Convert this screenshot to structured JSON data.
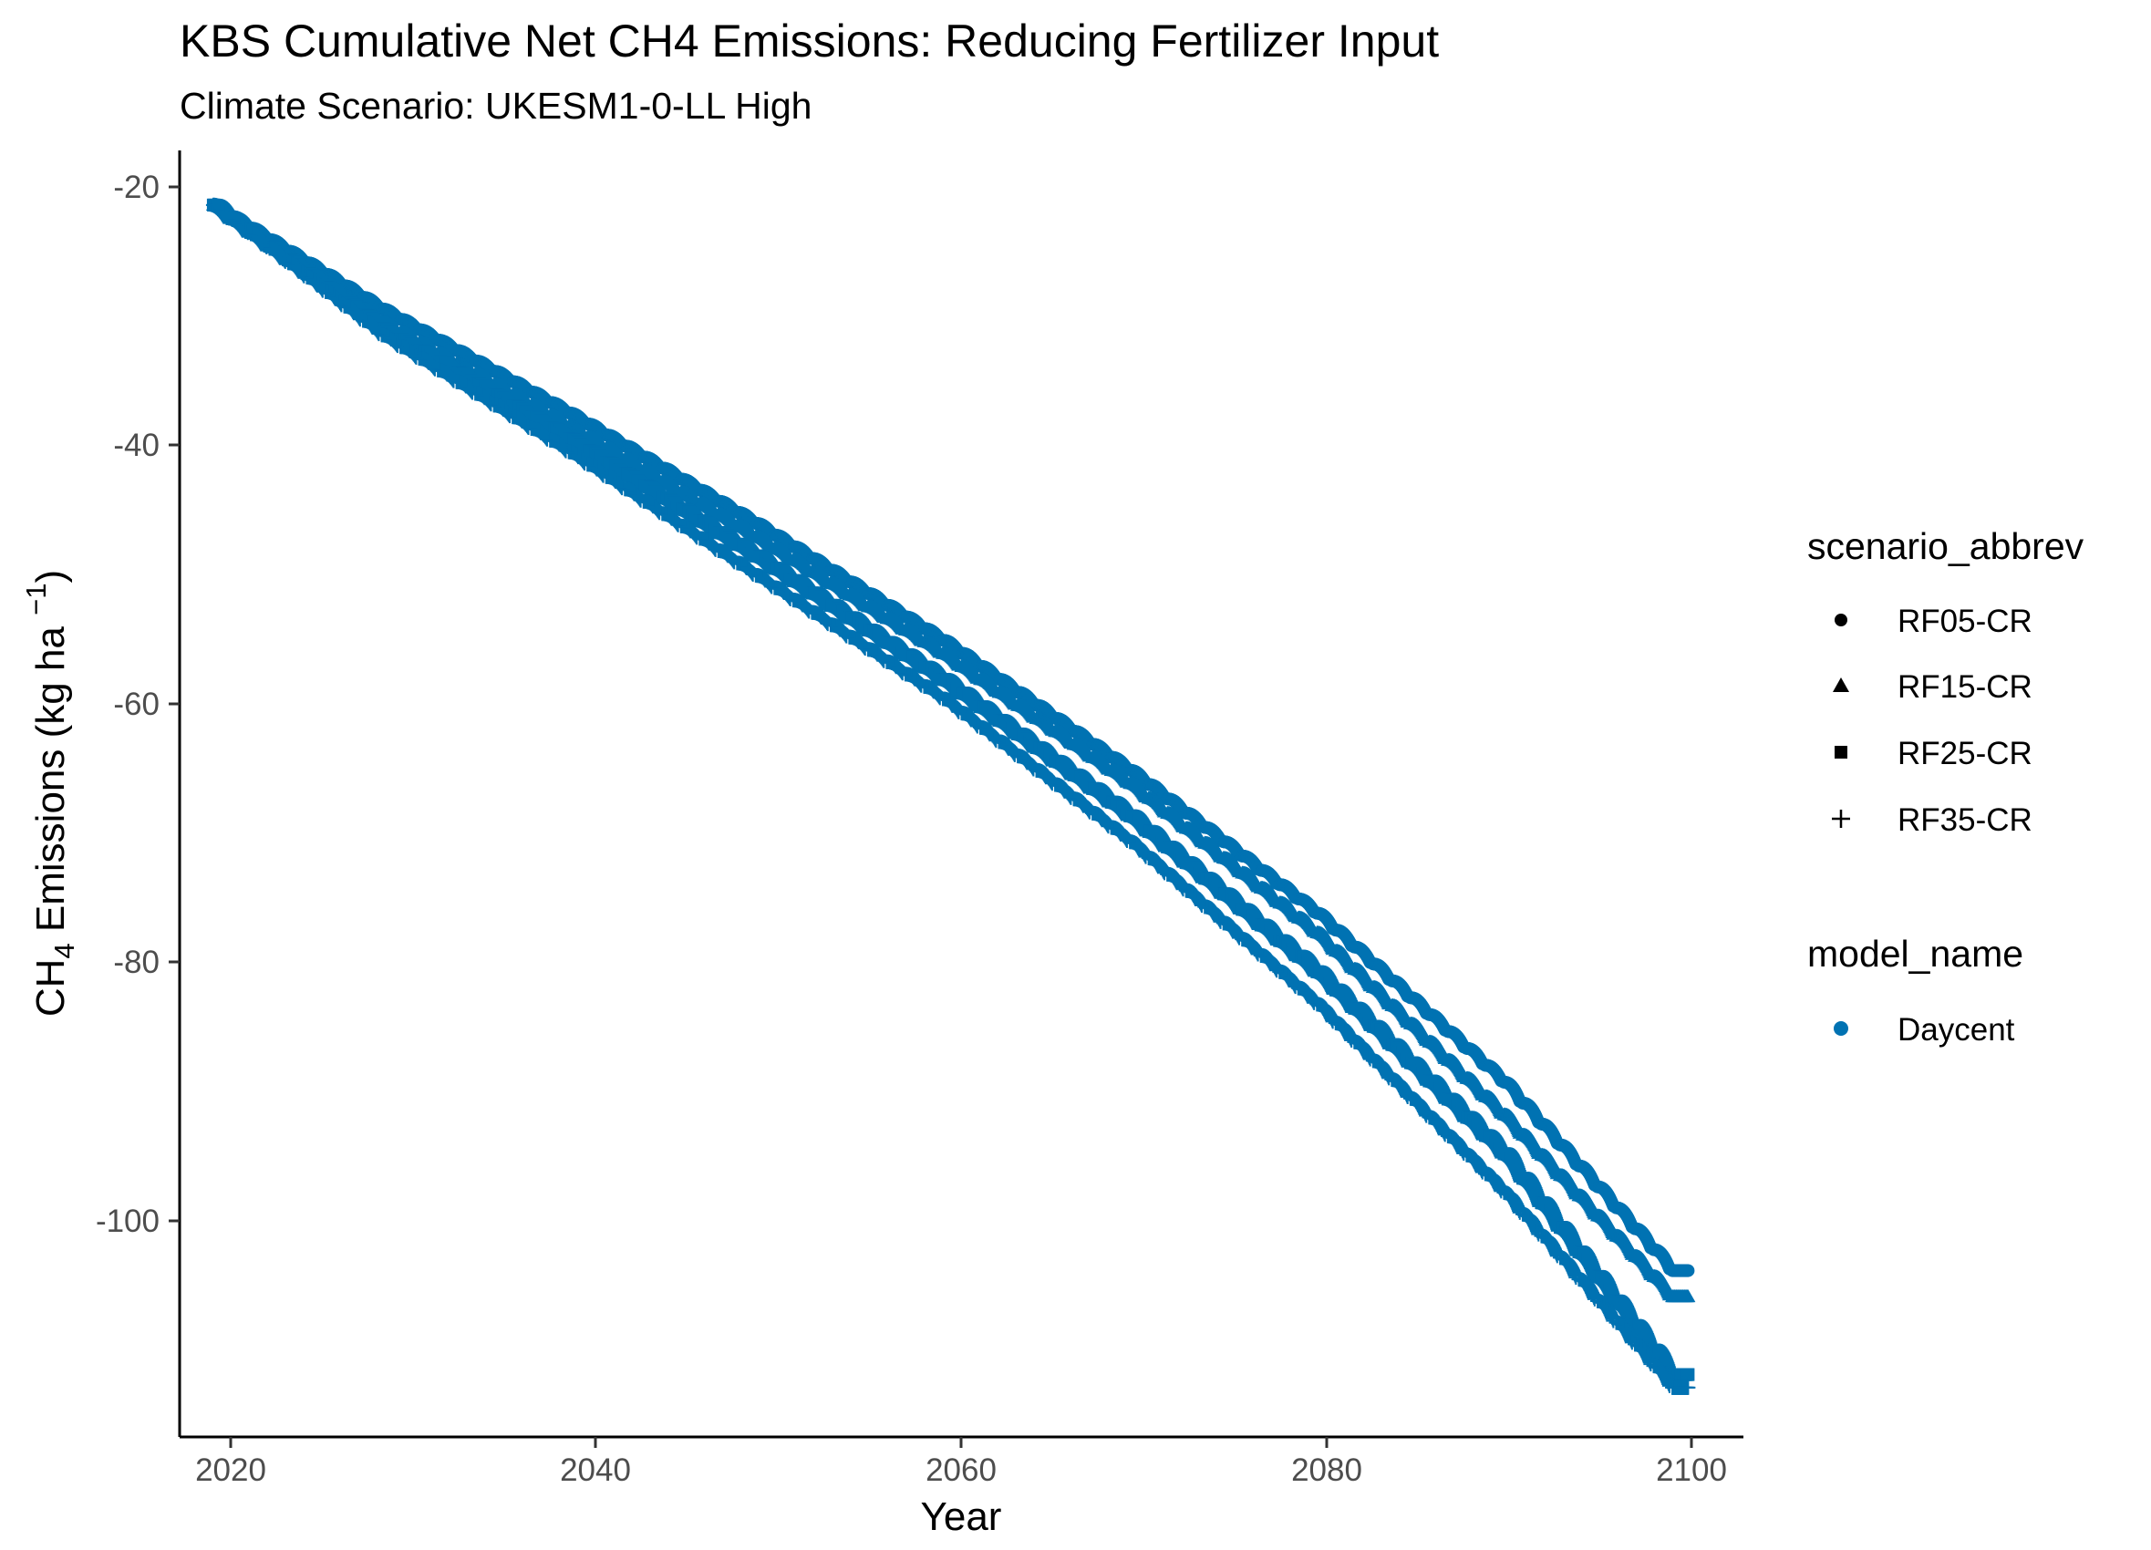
{
  "chart_data": {
    "type": "scatter",
    "title": "KBS  Cumulative Net CH4 Emissions: Reducing Fertilizer Input",
    "subtitle": "Climate Scenario: UKESM1-0-LL High",
    "xlabel": "Year",
    "ylabel": {
      "base": "CH",
      "sub": "4",
      "middle": " Emissions (kg ha ",
      "sup": "−1",
      "end": ")"
    },
    "xlim": [
      2019.2,
      2102.8
    ],
    "ylim": [
      -116.8,
      -17.8
    ],
    "x_ticks": [
      2020,
      2040,
      2060,
      2080,
      2100
    ],
    "x_tick_labels": [
      "2020",
      "2040",
      "2060",
      "2080",
      "2100"
    ],
    "y_ticks": [
      -20,
      -40,
      -60,
      -80,
      -100
    ],
    "y_tick_labels": [
      "-20",
      "-40",
      "-60",
      "-80",
      "-100"
    ],
    "grid": false,
    "legend_position": "right",
    "color": "#0072b2",
    "x_start": 2021,
    "x_end": 2099,
    "legend": {
      "scenario": {
        "title": "scenario_abbrev",
        "items": [
          {
            "label": "RF05-CR",
            "shape": "circle"
          },
          {
            "label": "RF15-CR",
            "shape": "triangle"
          },
          {
            "label": "RF25-CR",
            "shape": "square"
          },
          {
            "label": "RF35-CR",
            "shape": "plus"
          }
        ]
      },
      "model": {
        "title": "model_name",
        "items": [
          {
            "label": "Daycent",
            "shape": "circle",
            "color": "#0072b2"
          }
        ]
      }
    },
    "series": [
      {
        "name": "RF05-CR",
        "shape": "circle",
        "anchors": {
          "x": [
            2021,
            2030,
            2040,
            2050,
            2060,
            2070,
            2080,
            2090,
            2099
          ],
          "y": [
            -22,
            -30,
            -38,
            -46.5,
            -55.5,
            -65.5,
            -76.5,
            -89.5,
            -104
          ]
        }
      },
      {
        "name": "RF15-CR",
        "shape": "triangle",
        "anchors": {
          "x": [
            2021,
            2030,
            2040,
            2050,
            2060,
            2070,
            2080,
            2090,
            2099
          ],
          "y": [
            -22,
            -31,
            -39,
            -47.5,
            -56.5,
            -66.5,
            -78,
            -92,
            -106
          ]
        }
      },
      {
        "name": "RF25-CR",
        "shape": "square",
        "anchors": {
          "x": [
            2021,
            2030,
            2040,
            2050,
            2060,
            2070,
            2080,
            2090,
            2099
          ],
          "y": [
            -22,
            -31.5,
            -40,
            -49,
            -58.5,
            -69,
            -81,
            -95,
            -112
          ]
        }
      },
      {
        "name": "RF35-CR",
        "shape": "plus",
        "anchors": {
          "x": [
            2021,
            2030,
            2040,
            2050,
            2060,
            2070,
            2080,
            2090,
            2099
          ],
          "y": [
            -22,
            -32,
            -41,
            -50.5,
            -60,
            -71,
            -83.5,
            -98,
            -113
          ]
        }
      }
    ]
  }
}
